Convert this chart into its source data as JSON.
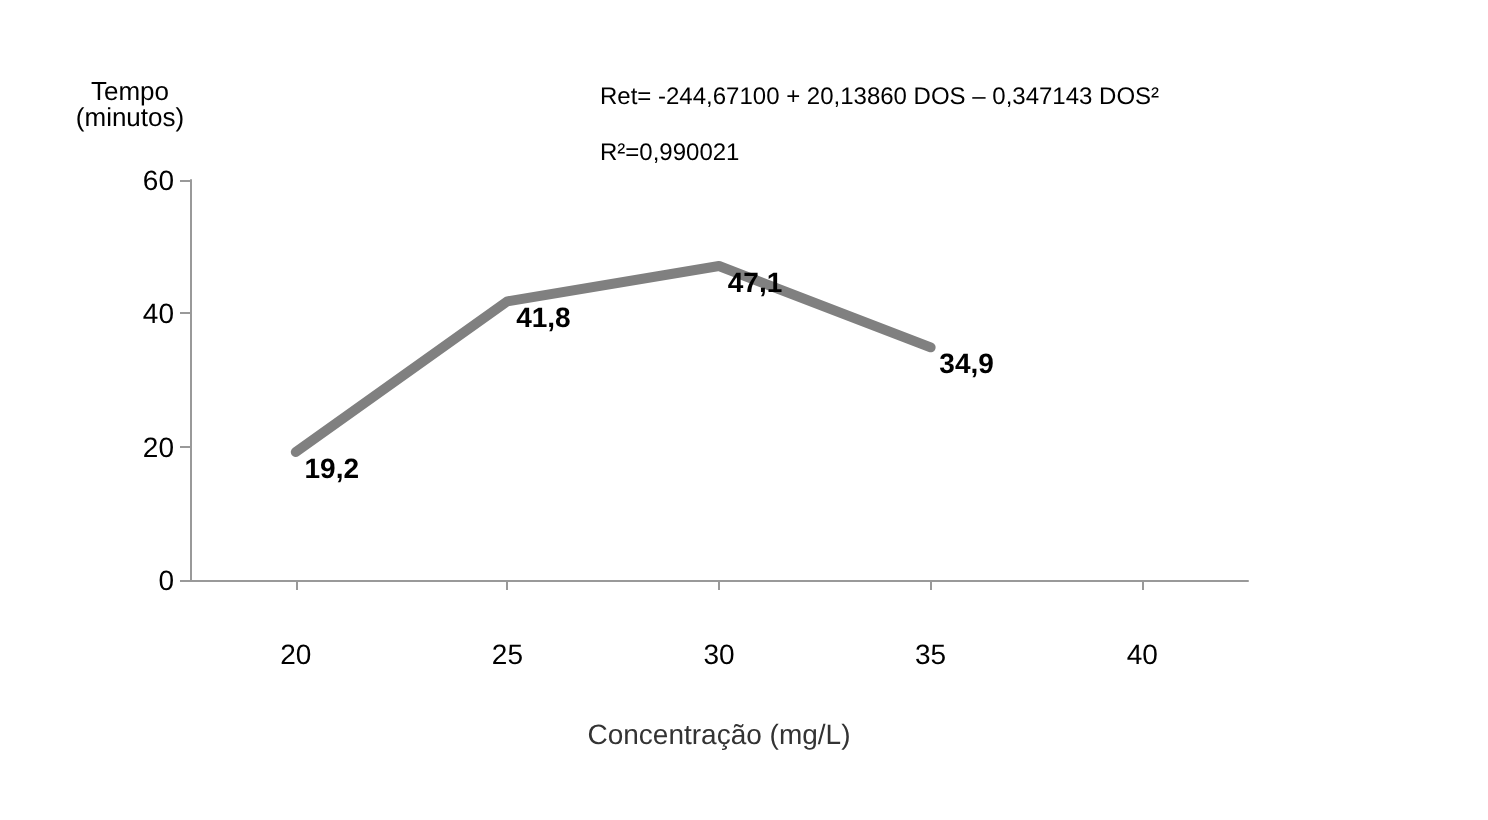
{
  "chart_data": {
    "type": "line",
    "ylabel": "Tempo\n(minutos)",
    "xlabel": "Concentração (mg/L)",
    "annotations": [
      "Ret= -244,67100 + 20,13860 DOS – 0,347143 DOS²",
      "R²=0,990021"
    ],
    "categories": [
      "20",
      "25",
      "30",
      "35",
      "40"
    ],
    "series": [
      {
        "color": "#808080",
        "values": [
          19.2,
          41.8,
          47.1,
          34.9,
          null
        ],
        "value_labels": [
          "19,2",
          "41,8",
          "47,1",
          "34,9",
          null
        ]
      }
    ],
    "ylim": [
      0,
      60
    ],
    "yticks": [
      0,
      20,
      40,
      60
    ],
    "grid": false,
    "marker": "none",
    "line_style": "solid"
  }
}
